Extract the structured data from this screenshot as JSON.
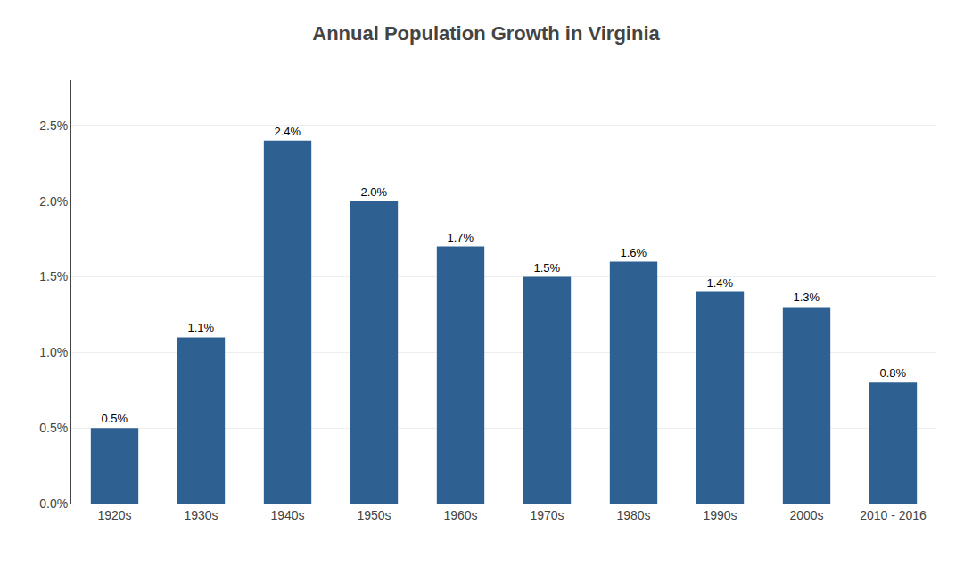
{
  "chart_data": {
    "type": "bar",
    "title": "Annual Population Growth in Virginia",
    "categories": [
      "1920s",
      "1930s",
      "1940s",
      "1950s",
      "1960s",
      "1970s",
      "1980s",
      "1990s",
      "2000s",
      "2010 - 2016"
    ],
    "values": [
      0.005,
      0.011,
      0.024,
      0.02,
      0.017,
      0.015,
      0.016,
      0.014,
      0.013,
      0.008
    ],
    "value_labels": [
      "0.5%",
      "1.1%",
      "2.4%",
      "2.0%",
      "1.7%",
      "1.5%",
      "1.6%",
      "1.4%",
      "1.3%",
      "0.8%"
    ],
    "color": "#2E6191",
    "ylim": [
      0,
      0.028
    ],
    "yticks": [
      {
        "value": 0.0,
        "label": "0.0%"
      },
      {
        "value": 0.005,
        "label": "0.5%"
      },
      {
        "value": 0.01,
        "label": "1.0%"
      },
      {
        "value": 0.015,
        "label": "1.5%"
      },
      {
        "value": 0.02,
        "label": "2.0%"
      },
      {
        "value": 0.025,
        "label": "2.5%"
      }
    ],
    "grid": true,
    "data_labels": true
  }
}
